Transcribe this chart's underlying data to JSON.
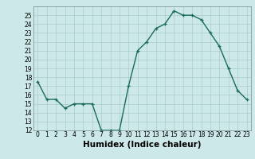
{
  "x": [
    0,
    1,
    2,
    3,
    4,
    5,
    6,
    7,
    8,
    9,
    10,
    11,
    12,
    13,
    14,
    15,
    16,
    17,
    18,
    19,
    20,
    21,
    22,
    23
  ],
  "y": [
    17.5,
    15.5,
    15.5,
    14.5,
    15.0,
    15.0,
    15.0,
    12.0,
    12.0,
    12.0,
    17.0,
    21.0,
    22.0,
    23.5,
    24.0,
    25.5,
    25.0,
    25.0,
    24.5,
    23.0,
    21.5,
    19.0,
    16.5,
    15.5
  ],
  "line_color": "#1a6b5a",
  "bg_color": "#cce8e8",
  "grid_color": "#aacccc",
  "xlabel": "Humidex (Indice chaleur)",
  "xlim": [
    -0.5,
    23.5
  ],
  "ylim": [
    12,
    26
  ],
  "yticks": [
    12,
    13,
    14,
    15,
    16,
    17,
    18,
    19,
    20,
    21,
    22,
    23,
    24,
    25
  ],
  "xticks": [
    0,
    1,
    2,
    3,
    4,
    5,
    6,
    7,
    8,
    9,
    10,
    11,
    12,
    13,
    14,
    15,
    16,
    17,
    18,
    19,
    20,
    21,
    22,
    23
  ],
  "marker": "+",
  "marker_size": 3.5,
  "line_width": 1.0,
  "xlabel_fontsize": 7.5,
  "tick_fontsize": 5.5
}
